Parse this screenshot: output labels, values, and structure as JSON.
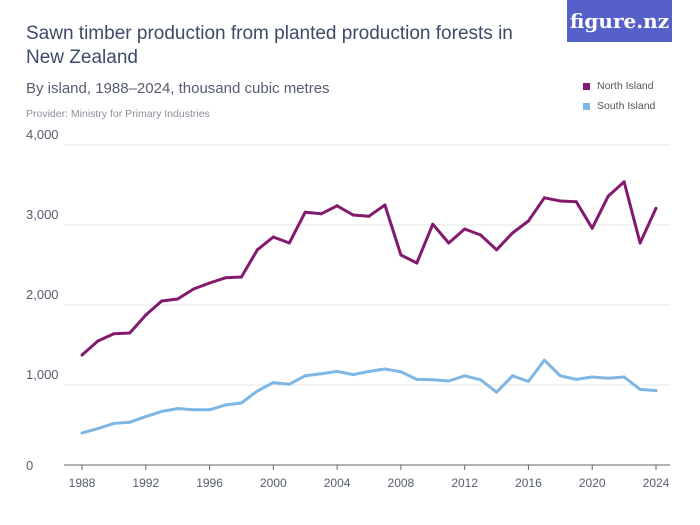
{
  "title": "Sawn timber production from planted production forests in New Zealand",
  "subtitle": "By island, 1988–2024, thousand cubic metres",
  "provider": "Provider: Ministry for Primary Industries",
  "logo": "figure.nz",
  "colors": {
    "north": "#821a6e",
    "south": "#7eb6e4",
    "logo_bg": "#5560c8"
  },
  "chart_data": {
    "type": "line",
    "title": "Sawn timber production from planted production forests in New Zealand",
    "x": [
      1988,
      1989,
      1990,
      1991,
      1992,
      1993,
      1994,
      1995,
      1996,
      1997,
      1998,
      1999,
      2000,
      2001,
      2002,
      2003,
      2004,
      2005,
      2006,
      2007,
      2008,
      2009,
      2010,
      2011,
      2012,
      2013,
      2014,
      2015,
      2016,
      2017,
      2018,
      2019,
      2020,
      2021,
      2022,
      2023,
      2024
    ],
    "series": [
      {
        "name": "North Island",
        "values": [
          1375,
          1550,
          1640,
          1650,
          1875,
          2050,
          2075,
          2200,
          2275,
          2340,
          2350,
          2690,
          2850,
          2775,
          3160,
          3140,
          3240,
          3125,
          3110,
          3250,
          2625,
          2525,
          3010,
          2775,
          2950,
          2875,
          2690,
          2900,
          3050,
          3340,
          3300,
          3290,
          2960,
          3360,
          3540,
          2775,
          3210
        ]
      },
      {
        "name": "South Island",
        "values": [
          400,
          455,
          520,
          535,
          605,
          670,
          705,
          690,
          690,
          750,
          775,
          925,
          1030,
          1010,
          1115,
          1140,
          1170,
          1130,
          1170,
          1200,
          1165,
          1070,
          1065,
          1050,
          1115,
          1065,
          910,
          1115,
          1045,
          1310,
          1115,
          1070,
          1100,
          1085,
          1100,
          945,
          930
        ]
      }
    ],
    "ylim": [
      0,
      4000
    ],
    "yticks": [
      "0",
      "1,000",
      "2,000",
      "3,000",
      "4,000"
    ],
    "xticks": [
      "1988",
      "1992",
      "1996",
      "2000",
      "2004",
      "2008",
      "2012",
      "2016",
      "2020",
      "2024"
    ],
    "grid": true,
    "legend": "top-right"
  }
}
